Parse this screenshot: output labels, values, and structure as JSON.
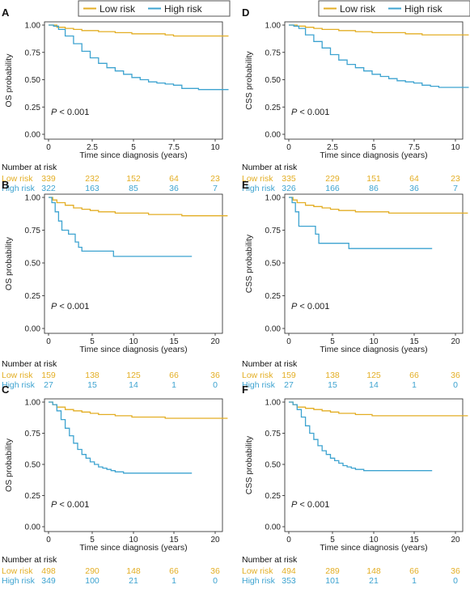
{
  "legend": {
    "low_label": "Low risk",
    "high_label": "High risk"
  },
  "colors": {
    "low": "#E3AE24",
    "high": "#3DA3D0",
    "axis": "#222222"
  },
  "chart_data": [
    {
      "id": "A",
      "type": "line",
      "ylabel": "OS probability",
      "xlabel": "Time since diagnosis (years)",
      "pvalue": "P < 0.001",
      "xlim": [
        0,
        10.8
      ],
      "xticks": [
        0,
        2.5,
        5,
        7.5,
        10
      ],
      "xtick_labels": [
        "0",
        "2.5",
        "5",
        "7.5",
        "10"
      ],
      "ylim": [
        0,
        1
      ],
      "yticks": [
        "0.00",
        "0.25",
        "0.50",
        "0.75",
        "1.00"
      ],
      "series": [
        {
          "name": "Low risk",
          "key": "low",
          "x": [
            0,
            0.5,
            1,
            1.5,
            2,
            3,
            4,
            5,
            6,
            7,
            7.5,
            8,
            9,
            10,
            10.8
          ],
          "y": [
            1,
            0.98,
            0.97,
            0.96,
            0.95,
            0.94,
            0.93,
            0.92,
            0.92,
            0.91,
            0.9,
            0.9,
            0.9,
            0.9,
            0.9
          ]
        },
        {
          "name": "High risk",
          "key": "high",
          "x": [
            0,
            0.3,
            0.6,
            1,
            1.5,
            2,
            2.5,
            3,
            3.5,
            4,
            4.5,
            5,
            5.5,
            6,
            6.5,
            7,
            7.5,
            8,
            8.5,
            9,
            10,
            10.8
          ],
          "y": [
            1,
            0.99,
            0.96,
            0.9,
            0.83,
            0.76,
            0.7,
            0.65,
            0.61,
            0.58,
            0.55,
            0.52,
            0.5,
            0.48,
            0.47,
            0.46,
            0.45,
            0.42,
            0.42,
            0.41,
            0.41,
            0.41
          ]
        }
      ],
      "risk_table": {
        "title": "Number at risk",
        "times": [
          0,
          2.5,
          5,
          7.5,
          10
        ],
        "rows": [
          {
            "label": "Low risk",
            "key": "low",
            "values": [
              "339",
              "232",
              "152",
              "64",
              "23"
            ]
          },
          {
            "label": "High risk",
            "key": "high",
            "values": [
              "322",
              "163",
              "85",
              "36",
              "7"
            ]
          }
        ]
      }
    },
    {
      "id": "D",
      "type": "line",
      "ylabel": "CSS probability",
      "xlabel": "Time since diagnosis (years)",
      "pvalue": "P < 0.001",
      "xlim": [
        0,
        10.8
      ],
      "xticks": [
        0,
        2.5,
        5,
        7.5,
        10
      ],
      "xtick_labels": [
        "0",
        "2.5",
        "5",
        "7.5",
        "10"
      ],
      "ylim": [
        0,
        1
      ],
      "yticks": [
        "0.00",
        "0.25",
        "0.50",
        "0.75",
        "1.00"
      ],
      "series": [
        {
          "name": "Low risk",
          "key": "low",
          "x": [
            0,
            0.5,
            1,
            1.5,
            2,
            3,
            4,
            5,
            6,
            7,
            8,
            9,
            10,
            10.8
          ],
          "y": [
            1,
            0.99,
            0.98,
            0.97,
            0.96,
            0.95,
            0.94,
            0.93,
            0.93,
            0.92,
            0.91,
            0.91,
            0.91,
            0.91
          ]
        },
        {
          "name": "High risk",
          "key": "high",
          "x": [
            0,
            0.3,
            0.6,
            1,
            1.5,
            2,
            2.5,
            3,
            3.5,
            4,
            4.5,
            5,
            5.5,
            6,
            6.5,
            7,
            7.5,
            8,
            8.5,
            9,
            10,
            10.8
          ],
          "y": [
            1,
            0.99,
            0.97,
            0.91,
            0.85,
            0.79,
            0.73,
            0.68,
            0.64,
            0.61,
            0.58,
            0.55,
            0.53,
            0.51,
            0.49,
            0.48,
            0.47,
            0.45,
            0.44,
            0.43,
            0.43,
            0.43
          ]
        }
      ],
      "risk_table": {
        "title": "Number at risk",
        "times": [
          0,
          2.5,
          5,
          7.5,
          10
        ],
        "rows": [
          {
            "label": "Low risk",
            "key": "low",
            "values": [
              "335",
              "229",
              "151",
              "64",
              "23"
            ]
          },
          {
            "label": "High risk",
            "key": "high",
            "values": [
              "326",
              "166",
              "86",
              "36",
              "7"
            ]
          }
        ]
      }
    },
    {
      "id": "B",
      "type": "line",
      "ylabel": "OS probability",
      "xlabel": "Time since diagnosis (years)",
      "pvalue": "P < 0.001",
      "xlim": [
        0,
        21.5
      ],
      "xticks": [
        0,
        5,
        10,
        15,
        20
      ],
      "xtick_labels": [
        "0",
        "5",
        "10",
        "15",
        "20"
      ],
      "ylim": [
        0,
        1
      ],
      "yticks": [
        "0.00",
        "0.25",
        "0.50",
        "0.75",
        "1.00"
      ],
      "series": [
        {
          "name": "Low risk",
          "key": "low",
          "x": [
            0,
            0.5,
            1,
            2,
            3,
            4,
            5,
            6,
            8,
            10,
            12,
            14,
            16,
            18,
            20,
            21.5
          ],
          "y": [
            1,
            0.98,
            0.96,
            0.94,
            0.92,
            0.91,
            0.9,
            0.89,
            0.88,
            0.88,
            0.87,
            0.87,
            0.86,
            0.86,
            0.86,
            0.86
          ]
        },
        {
          "name": "High risk",
          "key": "high",
          "x": [
            0,
            0.4,
            0.8,
            1.2,
            1.6,
            2.4,
            3.2,
            3.6,
            4,
            6,
            7.8,
            10,
            12,
            14,
            16,
            17.2
          ],
          "y": [
            1,
            0.96,
            0.89,
            0.82,
            0.75,
            0.72,
            0.66,
            0.62,
            0.59,
            0.59,
            0.55,
            0.55,
            0.55,
            0.55,
            0.55,
            0.55
          ]
        }
      ],
      "risk_table": {
        "title": "Number at risk",
        "times": [
          0,
          5,
          10,
          15,
          20
        ],
        "rows": [
          {
            "label": "Low risk",
            "key": "low",
            "values": [
              "159",
              "138",
              "125",
              "66",
              "36"
            ]
          },
          {
            "label": "High risk",
            "key": "high",
            "values": [
              "27",
              "15",
              "14",
              "1",
              "0"
            ]
          }
        ]
      }
    },
    {
      "id": "E",
      "type": "line",
      "ylabel": "CSS probability",
      "xlabel": "Time since diagnosis (years)",
      "pvalue": "P < 0.001",
      "xlim": [
        0,
        21.5
      ],
      "xticks": [
        0,
        5,
        10,
        15,
        20
      ],
      "xtick_labels": [
        "0",
        "5",
        "10",
        "15",
        "20"
      ],
      "ylim": [
        0,
        1
      ],
      "yticks": [
        "0.00",
        "0.25",
        "0.50",
        "0.75",
        "1.00"
      ],
      "series": [
        {
          "name": "Low risk",
          "key": "low",
          "x": [
            0,
            0.5,
            1,
            2,
            3,
            4,
            5,
            6,
            8,
            10,
            12,
            14,
            16,
            18,
            20,
            21.5
          ],
          "y": [
            1,
            0.98,
            0.96,
            0.94,
            0.93,
            0.92,
            0.91,
            0.9,
            0.89,
            0.89,
            0.88,
            0.88,
            0.88,
            0.88,
            0.88,
            0.88
          ]
        },
        {
          "name": "High risk",
          "key": "high",
          "x": [
            0,
            0.4,
            0.8,
            1.2,
            2.4,
            3.2,
            3.6,
            5,
            7.2,
            10,
            12,
            14,
            16,
            17.2
          ],
          "y": [
            1,
            0.96,
            0.89,
            0.78,
            0.78,
            0.72,
            0.65,
            0.65,
            0.61,
            0.61,
            0.61,
            0.61,
            0.61,
            0.61
          ]
        }
      ],
      "risk_table": {
        "title": "Number at risk",
        "times": [
          0,
          5,
          10,
          15,
          20
        ],
        "rows": [
          {
            "label": "Low risk",
            "key": "low",
            "values": [
              "159",
              "138",
              "125",
              "66",
              "36"
            ]
          },
          {
            "label": "High risk",
            "key": "high",
            "values": [
              "27",
              "15",
              "14",
              "1",
              "0"
            ]
          }
        ]
      }
    },
    {
      "id": "C",
      "type": "line",
      "ylabel": "OS probability",
      "xlabel": "Time since diagnosis (years)",
      "pvalue": "P < 0.001",
      "xlim": [
        0,
        21.5
      ],
      "xticks": [
        0,
        5,
        10,
        15,
        20
      ],
      "xtick_labels": [
        "0",
        "5",
        "10",
        "15",
        "20"
      ],
      "ylim": [
        0,
        1
      ],
      "yticks": [
        "0.00",
        "0.25",
        "0.50",
        "0.75",
        "1.00"
      ],
      "series": [
        {
          "name": "Low risk",
          "key": "low",
          "x": [
            0,
            0.5,
            1,
            2,
            3,
            4,
            5,
            6,
            8,
            10,
            12,
            14,
            16,
            18,
            20,
            21.5
          ],
          "y": [
            1,
            0.98,
            0.96,
            0.94,
            0.93,
            0.92,
            0.91,
            0.9,
            0.89,
            0.88,
            0.88,
            0.87,
            0.87,
            0.87,
            0.87,
            0.87
          ]
        },
        {
          "name": "High risk",
          "key": "high",
          "x": [
            0,
            0.5,
            1,
            1.5,
            2,
            2.5,
            3,
            3.5,
            4,
            4.5,
            5,
            5.5,
            6,
            6.5,
            7,
            7.5,
            8,
            9,
            10,
            12,
            14,
            16,
            17.2
          ],
          "y": [
            1,
            0.98,
            0.93,
            0.86,
            0.79,
            0.73,
            0.67,
            0.62,
            0.58,
            0.55,
            0.52,
            0.5,
            0.48,
            0.47,
            0.46,
            0.45,
            0.44,
            0.43,
            0.43,
            0.43,
            0.43,
            0.43,
            0.43
          ]
        }
      ],
      "risk_table": {
        "title": "Number at risk",
        "times": [
          0,
          5,
          10,
          15,
          20
        ],
        "rows": [
          {
            "label": "Low risk",
            "key": "low",
            "values": [
              "498",
              "290",
              "148",
              "66",
              "36"
            ]
          },
          {
            "label": "High risk",
            "key": "high",
            "values": [
              "349",
              "100",
              "21",
              "1",
              "0"
            ]
          }
        ]
      }
    },
    {
      "id": "F",
      "type": "line",
      "ylabel": "CSS probability",
      "xlabel": "Time since diagnosis (years)",
      "pvalue": "P < 0.001",
      "xlim": [
        0,
        21.5
      ],
      "xticks": [
        0,
        5,
        10,
        15,
        20
      ],
      "xtick_labels": [
        "0",
        "5",
        "10",
        "15",
        "20"
      ],
      "ylim": [
        0,
        1
      ],
      "yticks": [
        "0.00",
        "0.25",
        "0.50",
        "0.75",
        "1.00"
      ],
      "series": [
        {
          "name": "Low risk",
          "key": "low",
          "x": [
            0,
            0.5,
            1,
            2,
            3,
            4,
            5,
            6,
            8,
            10,
            12,
            14,
            16,
            18,
            20,
            21.5
          ],
          "y": [
            1,
            0.98,
            0.96,
            0.95,
            0.94,
            0.93,
            0.92,
            0.91,
            0.9,
            0.89,
            0.89,
            0.89,
            0.89,
            0.89,
            0.89,
            0.89
          ]
        },
        {
          "name": "High risk",
          "key": "high",
          "x": [
            0,
            0.5,
            1,
            1.5,
            2,
            2.5,
            3,
            3.5,
            4,
            4.5,
            5,
            5.5,
            6,
            6.5,
            7,
            7.5,
            8,
            9,
            10,
            12,
            14,
            16,
            17.2
          ],
          "y": [
            1,
            0.98,
            0.94,
            0.88,
            0.81,
            0.75,
            0.7,
            0.65,
            0.61,
            0.58,
            0.55,
            0.53,
            0.51,
            0.49,
            0.48,
            0.47,
            0.46,
            0.45,
            0.45,
            0.45,
            0.45,
            0.45,
            0.45
          ]
        }
      ],
      "risk_table": {
        "title": "Number at risk",
        "times": [
          0,
          5,
          10,
          15,
          20
        ],
        "rows": [
          {
            "label": "Low risk",
            "key": "low",
            "values": [
              "494",
              "289",
              "148",
              "66",
              "36"
            ]
          },
          {
            "label": "High risk",
            "key": "high",
            "values": [
              "353",
              "101",
              "21",
              "1",
              "0"
            ]
          }
        ]
      }
    }
  ]
}
